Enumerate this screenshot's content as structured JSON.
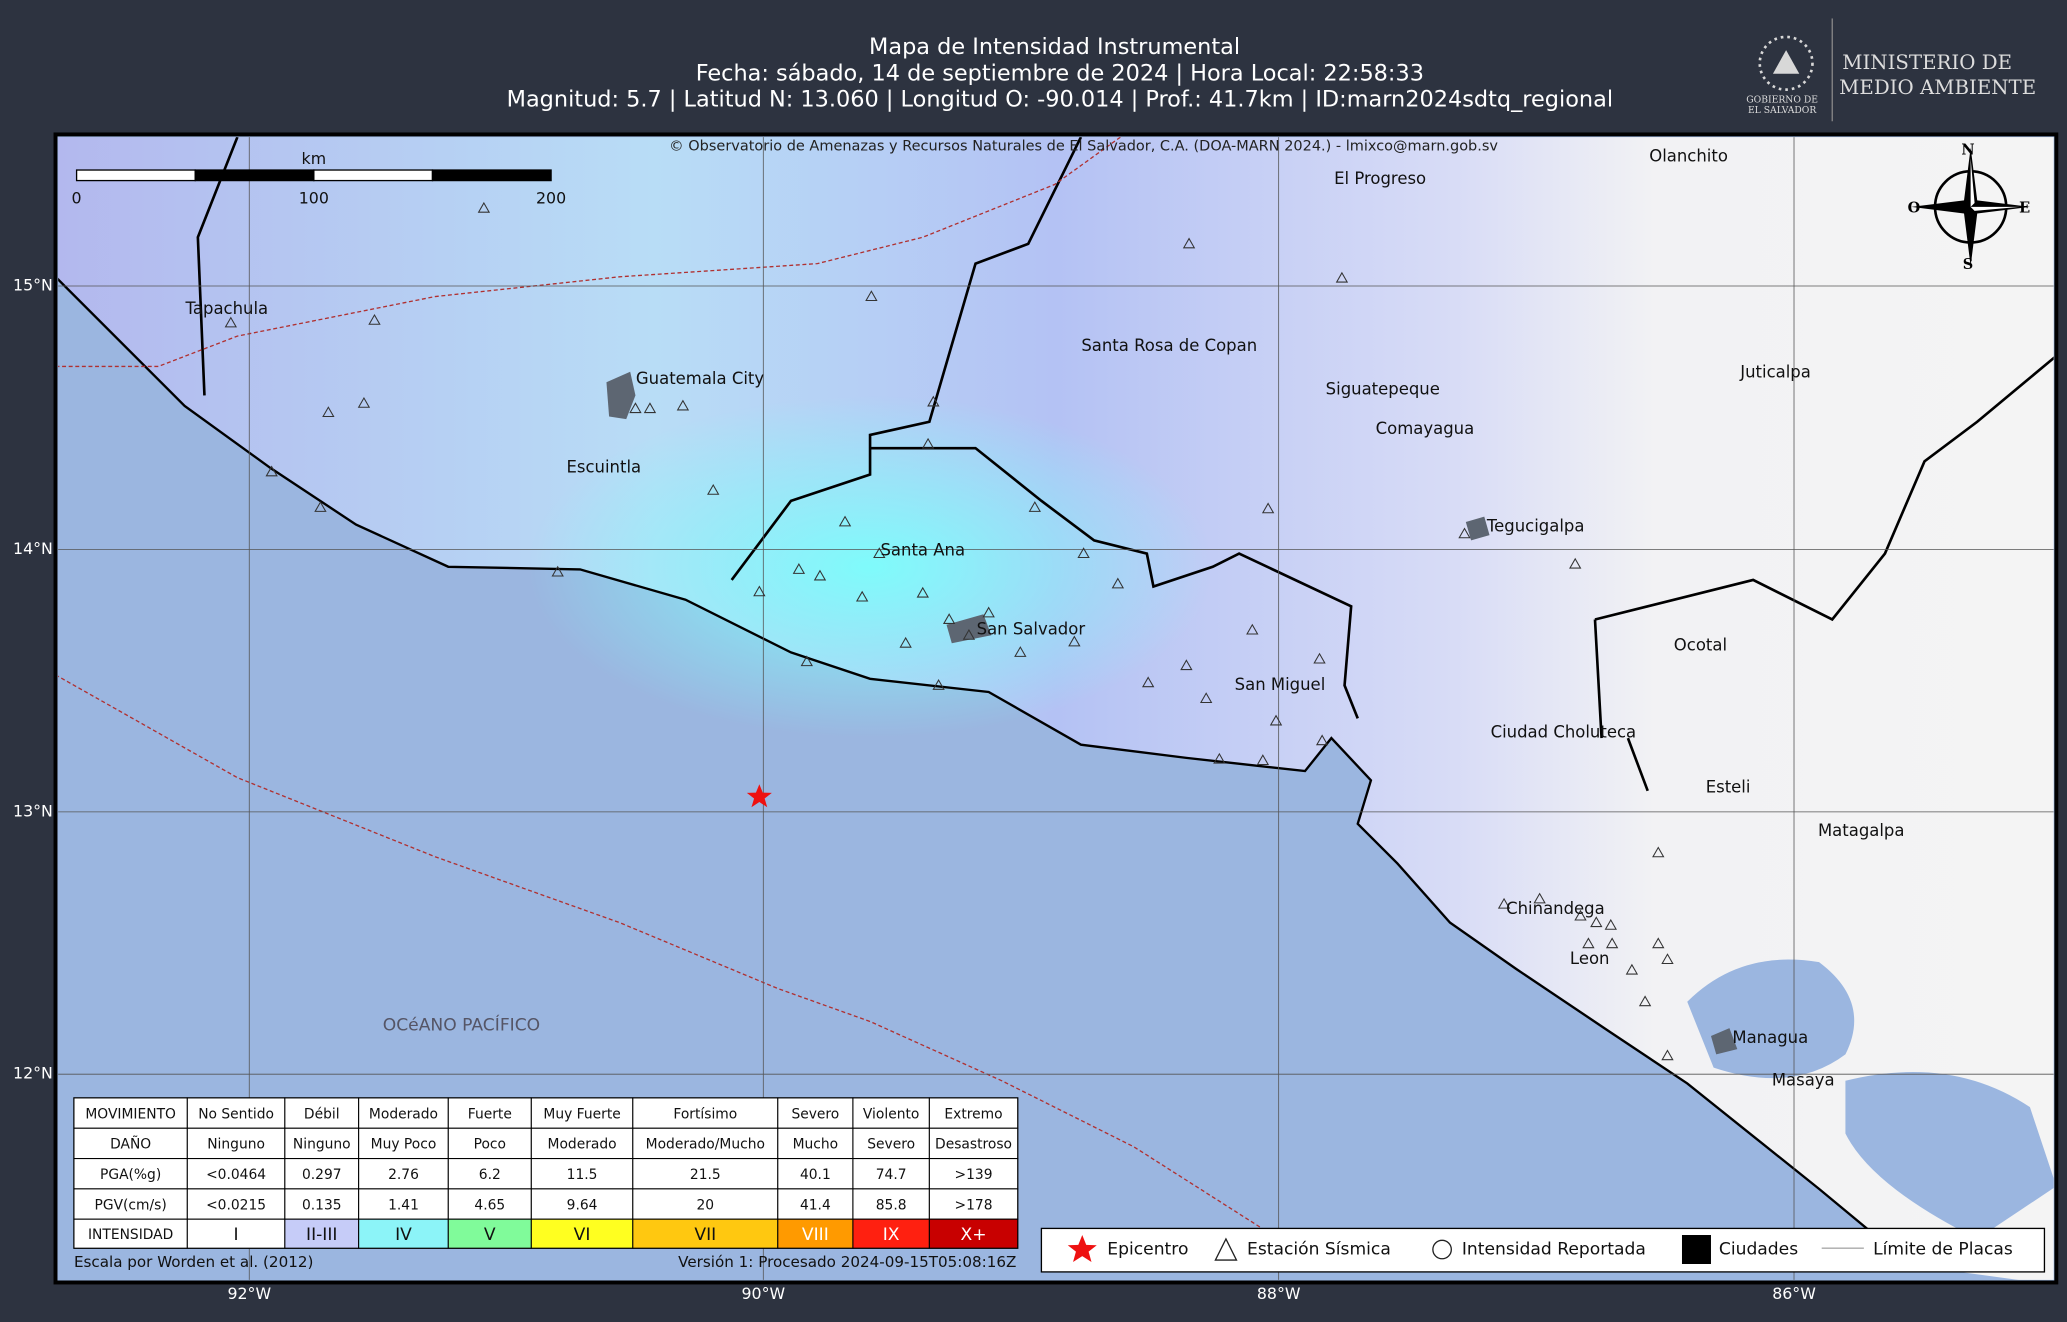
{
  "header": {
    "title": "Mapa de Intensidad Instrumental",
    "date_line": "Fecha: sábado, 14 de septiembre de 2024 | Hora Local: 22:58:33",
    "info_line": "Magnitud: 5.7 | Latitud N: 13.060 | Longitud O: -90.014 | Prof.: 41.7km | ID:marn2024sdtq_regional"
  },
  "logo": {
    "government": [
      "GOBIERNO DE",
      "EL SALVADOR"
    ],
    "ministry": [
      "MINISTERIO DE",
      "MEDIO AMBIENTE"
    ]
  },
  "map": {
    "copyright": "© Observatorio de Amenazas y Recursos Naturales de El Salvador, C.A. (DOA-MARN 2024.) - lmixco@marn.gob.sv",
    "scale": {
      "unit": "km",
      "labels": [
        "0",
        "100",
        "200"
      ]
    },
    "compass": [
      "N",
      "O",
      "E",
      "S"
    ],
    "places": [
      "El Progreso",
      "Olanchito",
      "Tapachula",
      "Santa Rosa de Copan",
      "Guatemala City",
      "Siguatepeque",
      "Juticalpa",
      "Comayagua",
      "Escuintla",
      "Tegucigalpa",
      "Santa Ana",
      "Ocotal",
      "San Salvador",
      "San Miguel",
      "Ciudad Choluteca",
      "Esteli",
      "Matagalpa",
      "Chinandega",
      "Leon",
      "Managua",
      "Masaya"
    ],
    "ocean": "OCéANO PACÍFICO",
    "lat_labels": [
      "15°N",
      "14°N",
      "13°N",
      "12°N"
    ],
    "lon_labels": [
      "92°W",
      "90°W",
      "88°W",
      "86°W"
    ]
  },
  "table": {
    "rows": [
      [
        "MOVIMIENTO",
        "No Sentido",
        "Débil",
        "Moderado",
        "Fuerte",
        "Muy Fuerte",
        "Fortísimo",
        "Severo",
        "Violento",
        "Extremo"
      ],
      [
        "DAÑO",
        "Ninguno",
        "Ninguno",
        "Muy Poco",
        "Poco",
        "Moderado",
        "Moderado/Mucho",
        "Mucho",
        "Severo",
        "Desastroso"
      ],
      [
        "PGA(%g)",
        "<0.0464",
        "0.297",
        "2.76",
        "6.2",
        "11.5",
        "21.5",
        "40.1",
        "74.7",
        ">139"
      ],
      [
        "PGV(cm/s)",
        "<0.0215",
        "0.135",
        "1.41",
        "4.65",
        "9.64",
        "20",
        "41.4",
        "85.8",
        ">178"
      ],
      [
        "INTENSIDAD",
        "I",
        "II-III",
        "IV",
        "V",
        "VI",
        "VII",
        "VIII",
        "IX",
        "X+"
      ]
    ]
  },
  "legend": [
    "Epicentro",
    "Estación Sísmica",
    "Intensidad Reportada",
    "Ciudades",
    "Límite de Placas"
  ],
  "footer": {
    "left": "Escala por Worden et al. (2012)",
    "right": "Versión 1: Procesado 2024-09-15T05:08:16Z"
  }
}
